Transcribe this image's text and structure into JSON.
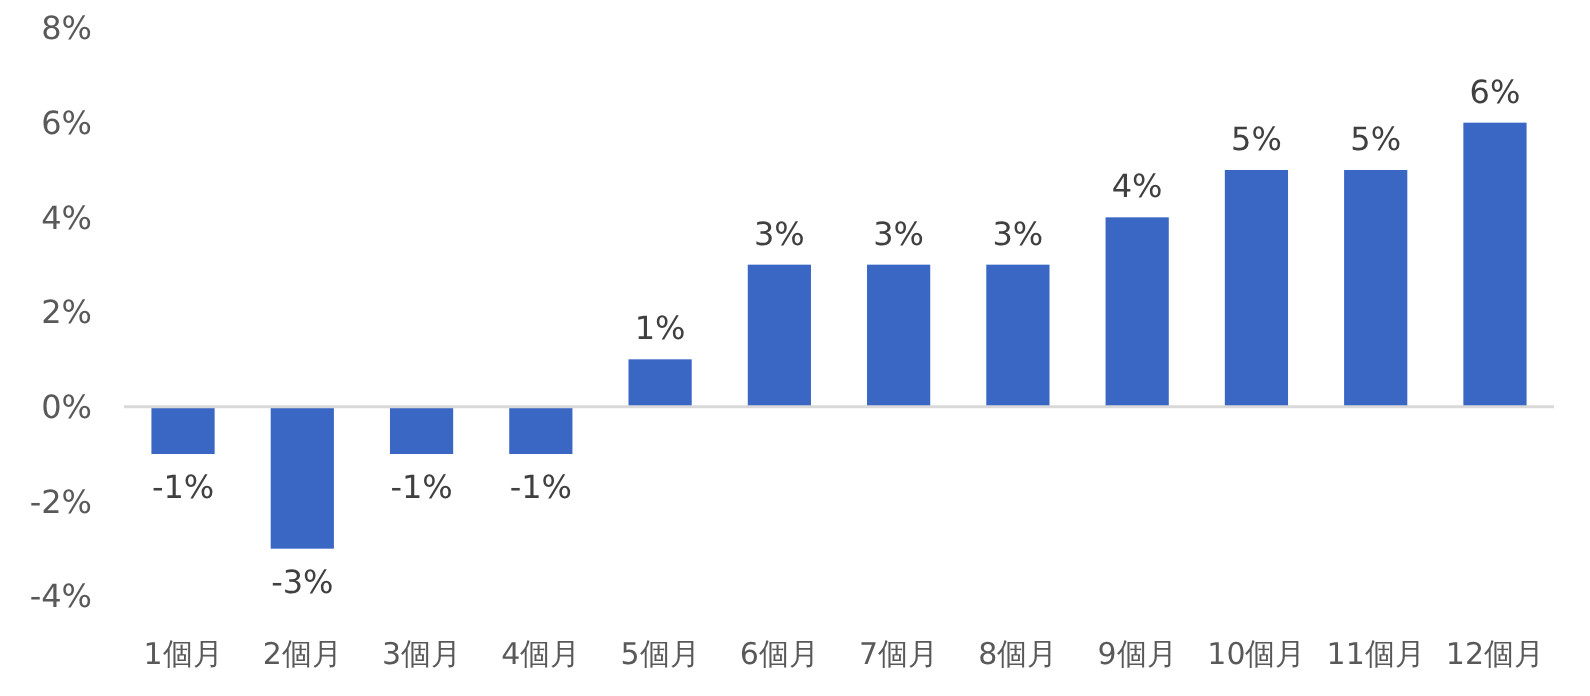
{
  "chart_data": {
    "type": "bar",
    "categories": [
      "1個月",
      "2個月",
      "3個月",
      "4個月",
      "5個月",
      "6個月",
      "7個月",
      "8個月",
      "9個月",
      "10個月",
      "11個月",
      "12個月"
    ],
    "values": [
      -1,
      -3,
      -1,
      -1,
      1,
      3,
      3,
      3,
      4,
      5,
      5,
      6
    ],
    "value_labels": [
      "-1%",
      "-3%",
      "-1%",
      "-1%",
      "1%",
      "3%",
      "3%",
      "3%",
      "4%",
      "5%",
      "5%",
      "6%"
    ],
    "color": "#3a66c4",
    "ylim": [
      -4,
      8
    ],
    "yticks": [
      {
        "value": -4,
        "label": "-4%"
      },
      {
        "value": -2,
        "label": "-2%"
      },
      {
        "value": 0,
        "label": "0%"
      },
      {
        "value": 2,
        "label": "2%"
      },
      {
        "value": 4,
        "label": "4%"
      },
      {
        "value": 6,
        "label": "6%"
      },
      {
        "value": 8,
        "label": "8%"
      }
    ]
  }
}
